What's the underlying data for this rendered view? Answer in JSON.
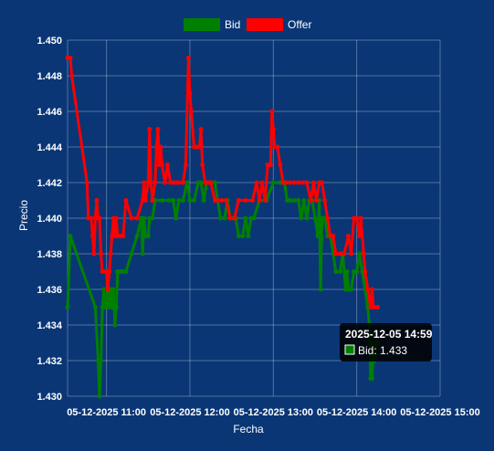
{
  "chart_data": {
    "type": "line",
    "xlabel": "Fecha",
    "ylabel": "Precio",
    "ylim": [
      1.43,
      1.45
    ],
    "yticks": [
      "1.430",
      "1.432",
      "1.434",
      "1.436",
      "1.438",
      "1.440",
      "1.442",
      "1.444",
      "1.446",
      "1.448",
      "1.450"
    ],
    "xlim": [
      "2025-12-05 10:32",
      "2025-12-05 15:00"
    ],
    "xticks": [
      {
        "t": "2025-12-05 11:00",
        "label": "05-12-2025 11:00"
      },
      {
        "t": "2025-12-05 12:00",
        "label": "05-12-2025 12:00"
      },
      {
        "t": "2025-12-05 13:00",
        "label": "05-12-2025 13:00"
      },
      {
        "t": "2025-12-05 14:00",
        "label": "05-12-2025 14:00"
      },
      {
        "t": "2025-12-05 15:00",
        "label": "05-12-2025 15:00"
      }
    ],
    "grid": true,
    "legend_position": "top",
    "series": [
      {
        "name": "Bid",
        "color": "#008000",
        "points": [
          [
            "2025-12-05 10:32",
            1.435
          ],
          [
            "2025-12-05 10:34",
            1.439
          ],
          [
            "2025-12-05 10:52",
            1.435
          ],
          [
            "2025-12-05 10:54",
            1.432
          ],
          [
            "2025-12-05 10:55",
            1.43
          ],
          [
            "2025-12-05 10:56",
            1.432
          ],
          [
            "2025-12-05 10:57",
            1.435
          ],
          [
            "2025-12-05 10:58",
            1.436
          ],
          [
            "2025-12-05 10:59",
            1.435
          ],
          [
            "2025-12-05 11:00",
            1.435
          ],
          [
            "2025-12-05 11:01",
            1.436
          ],
          [
            "2025-12-05 11:02",
            1.435
          ],
          [
            "2025-12-05 11:03",
            1.436
          ],
          [
            "2025-12-05 11:04",
            1.435
          ],
          [
            "2025-12-05 11:05",
            1.436
          ],
          [
            "2025-12-05 11:06",
            1.434
          ],
          [
            "2025-12-05 11:07",
            1.435
          ],
          [
            "2025-12-05 11:08",
            1.437
          ],
          [
            "2025-12-05 11:10",
            1.437
          ],
          [
            "2025-12-05 11:12",
            1.437
          ],
          [
            "2025-12-05 11:14",
            1.437
          ],
          [
            "2025-12-05 11:18",
            1.438
          ],
          [
            "2025-12-05 11:22",
            1.439
          ],
          [
            "2025-12-05 11:25",
            1.44
          ],
          [
            "2025-12-05 11:26",
            1.438
          ],
          [
            "2025-12-05 11:27",
            1.44
          ],
          [
            "2025-12-05 11:28",
            1.439
          ],
          [
            "2025-12-05 11:30",
            1.439
          ],
          [
            "2025-12-05 11:31",
            1.44
          ],
          [
            "2025-12-05 11:33",
            1.44
          ],
          [
            "2025-12-05 11:35",
            1.441
          ],
          [
            "2025-12-05 11:40",
            1.441
          ],
          [
            "2025-12-05 11:45",
            1.441
          ],
          [
            "2025-12-05 11:48",
            1.441
          ],
          [
            "2025-12-05 11:50",
            1.44
          ],
          [
            "2025-12-05 11:52",
            1.441
          ],
          [
            "2025-12-05 11:55",
            1.441
          ],
          [
            "2025-12-05 11:58",
            1.442
          ],
          [
            "2025-12-05 12:00",
            1.441
          ],
          [
            "2025-12-05 12:03",
            1.441
          ],
          [
            "2025-12-05 12:06",
            1.442
          ],
          [
            "2025-12-05 12:08",
            1.442
          ],
          [
            "2025-12-05 12:10",
            1.441
          ],
          [
            "2025-12-05 12:12",
            1.442
          ],
          [
            "2025-12-05 12:15",
            1.442
          ],
          [
            "2025-12-05 12:18",
            1.442
          ],
          [
            "2025-12-05 12:20",
            1.441
          ],
          [
            "2025-12-05 12:22",
            1.44
          ],
          [
            "2025-12-05 12:25",
            1.44
          ],
          [
            "2025-12-05 12:27",
            1.441
          ],
          [
            "2025-12-05 12:29",
            1.44
          ],
          [
            "2025-12-05 12:31",
            1.44
          ],
          [
            "2025-12-05 12:33",
            1.44
          ],
          [
            "2025-12-05 12:35",
            1.439
          ],
          [
            "2025-12-05 12:38",
            1.439
          ],
          [
            "2025-12-05 12:40",
            1.44
          ],
          [
            "2025-12-05 12:42",
            1.439
          ],
          [
            "2025-12-05 12:44",
            1.44
          ],
          [
            "2025-12-05 12:46",
            1.44
          ],
          [
            "2025-12-05 12:50",
            1.441
          ],
          [
            "2025-12-05 12:55",
            1.441
          ],
          [
            "2025-12-05 13:00",
            1.442
          ],
          [
            "2025-12-05 13:05",
            1.442
          ],
          [
            "2025-12-05 13:08",
            1.442
          ],
          [
            "2025-12-05 13:10",
            1.441
          ],
          [
            "2025-12-05 13:12",
            1.441
          ],
          [
            "2025-12-05 13:15",
            1.441
          ],
          [
            "2025-12-05 13:18",
            1.441
          ],
          [
            "2025-12-05 13:20",
            1.44
          ],
          [
            "2025-12-05 13:22",
            1.441
          ],
          [
            "2025-12-05 13:24",
            1.44
          ],
          [
            "2025-12-05 13:26",
            1.441
          ],
          [
            "2025-12-05 13:28",
            1.441
          ],
          [
            "2025-12-05 13:30",
            1.44
          ],
          [
            "2025-12-05 13:32",
            1.439
          ],
          [
            "2025-12-05 13:33",
            1.441
          ],
          [
            "2025-12-05 13:34",
            1.436
          ],
          [
            "2025-12-05 13:35",
            1.44
          ],
          [
            "2025-12-05 13:37",
            1.44
          ],
          [
            "2025-12-05 13:39",
            1.439
          ],
          [
            "2025-12-05 13:41",
            1.439
          ],
          [
            "2025-12-05 13:43",
            1.438
          ],
          [
            "2025-12-05 13:45",
            1.437
          ],
          [
            "2025-12-05 13:48",
            1.437
          ],
          [
            "2025-12-05 13:50",
            1.438
          ],
          [
            "2025-12-05 13:52",
            1.436
          ],
          [
            "2025-12-05 13:53",
            1.437
          ],
          [
            "2025-12-05 13:54",
            1.436
          ],
          [
            "2025-12-05 13:56",
            1.436
          ],
          [
            "2025-12-05 13:58",
            1.437
          ],
          [
            "2025-12-05 14:00",
            1.437
          ],
          [
            "2025-12-05 14:02",
            1.438
          ],
          [
            "2025-12-05 14:04",
            1.437
          ],
          [
            "2025-12-05 14:06",
            1.436
          ],
          [
            "2025-12-05 14:08",
            1.435
          ],
          [
            "2025-12-05 14:09",
            1.434
          ],
          [
            "2025-12-05 14:10",
            1.431
          ],
          [
            "2025-12-05 14:11",
            1.431
          ],
          [
            "2025-12-05 14:12",
            1.433
          ],
          [
            "2025-12-05 14:13",
            1.432
          ],
          [
            "2025-12-05 14:14",
            1.433
          ],
          [
            "2025-12-05 14:15",
            1.433
          ]
        ]
      },
      {
        "name": "Offer",
        "color": "#ff0000",
        "points": [
          [
            "2025-12-05 10:32",
            1.449
          ],
          [
            "2025-12-05 10:34",
            1.449
          ],
          [
            "2025-12-05 10:35",
            1.448
          ],
          [
            "2025-12-05 10:46",
            1.442
          ],
          [
            "2025-12-05 10:47",
            1.44
          ],
          [
            "2025-12-05 10:49",
            1.44
          ],
          [
            "2025-12-05 10:50",
            1.439
          ],
          [
            "2025-12-05 10:51",
            1.438
          ],
          [
            "2025-12-05 10:52",
            1.44
          ],
          [
            "2025-12-05 10:53",
            1.441
          ],
          [
            "2025-12-05 10:54",
            1.44
          ],
          [
            "2025-12-05 10:55",
            1.44
          ],
          [
            "2025-12-05 10:56",
            1.438
          ],
          [
            "2025-12-05 10:57",
            1.437
          ],
          [
            "2025-12-05 10:59",
            1.437
          ],
          [
            "2025-12-05 11:00",
            1.437
          ],
          [
            "2025-12-05 11:01",
            1.436
          ],
          [
            "2025-12-05 11:02",
            1.437
          ],
          [
            "2025-12-05 11:03",
            1.438
          ],
          [
            "2025-12-05 11:04",
            1.439
          ],
          [
            "2025-12-05 11:05",
            1.44
          ],
          [
            "2025-12-05 11:06",
            1.439
          ],
          [
            "2025-12-05 11:07",
            1.44
          ],
          [
            "2025-12-05 11:08",
            1.439
          ],
          [
            "2025-12-05 11:10",
            1.439
          ],
          [
            "2025-12-05 11:12",
            1.439
          ],
          [
            "2025-12-05 11:14",
            1.441
          ],
          [
            "2025-12-05 11:18",
            1.44
          ],
          [
            "2025-12-05 11:22",
            1.44
          ],
          [
            "2025-12-05 11:26",
            1.441
          ],
          [
            "2025-12-05 11:27",
            1.442
          ],
          [
            "2025-12-05 11:28",
            1.441
          ],
          [
            "2025-12-05 11:30",
            1.442
          ],
          [
            "2025-12-05 11:31",
            1.445
          ],
          [
            "2025-12-05 11:32",
            1.442
          ],
          [
            "2025-12-05 11:33",
            1.441
          ],
          [
            "2025-12-05 11:35",
            1.442
          ],
          [
            "2025-12-05 11:36",
            1.444
          ],
          [
            "2025-12-05 11:37",
            1.445
          ],
          [
            "2025-12-05 11:38",
            1.443
          ],
          [
            "2025-12-05 11:39",
            1.444
          ],
          [
            "2025-12-05 11:40",
            1.443
          ],
          [
            "2025-12-05 11:42",
            1.442
          ],
          [
            "2025-12-05 11:44",
            1.443
          ],
          [
            "2025-12-05 11:46",
            1.442
          ],
          [
            "2025-12-05 11:48",
            1.442
          ],
          [
            "2025-12-05 11:50",
            1.442
          ],
          [
            "2025-12-05 11:52",
            1.442
          ],
          [
            "2025-12-05 11:55",
            1.442
          ],
          [
            "2025-12-05 11:57",
            1.443
          ],
          [
            "2025-12-05 11:59",
            1.449
          ],
          [
            "2025-12-05 12:00",
            1.447
          ],
          [
            "2025-12-05 12:01",
            1.446
          ],
          [
            "2025-12-05 12:03",
            1.444
          ],
          [
            "2025-12-05 12:05",
            1.444
          ],
          [
            "2025-12-05 12:07",
            1.444
          ],
          [
            "2025-12-05 12:08",
            1.445
          ],
          [
            "2025-12-05 12:09",
            1.443
          ],
          [
            "2025-12-05 12:11",
            1.442
          ],
          [
            "2025-12-05 12:13",
            1.442
          ],
          [
            "2025-12-05 12:15",
            1.442
          ],
          [
            "2025-12-05 12:18",
            1.441
          ],
          [
            "2025-12-05 12:20",
            1.441
          ],
          [
            "2025-12-05 12:23",
            1.441
          ],
          [
            "2025-12-05 12:26",
            1.441
          ],
          [
            "2025-12-05 12:29",
            1.44
          ],
          [
            "2025-12-05 12:32",
            1.44
          ],
          [
            "2025-12-05 12:35",
            1.441
          ],
          [
            "2025-12-05 12:40",
            1.441
          ],
          [
            "2025-12-05 12:45",
            1.441
          ],
          [
            "2025-12-05 12:48",
            1.442
          ],
          [
            "2025-12-05 12:50",
            1.441
          ],
          [
            "2025-12-05 12:52",
            1.442
          ],
          [
            "2025-12-05 12:54",
            1.441
          ],
          [
            "2025-12-05 12:56",
            1.443
          ],
          [
            "2025-12-05 12:58",
            1.443
          ],
          [
            "2025-12-05 12:59",
            1.446
          ],
          [
            "2025-12-05 13:00",
            1.445
          ],
          [
            "2025-12-05 13:01",
            1.444
          ],
          [
            "2025-12-05 13:03",
            1.444
          ],
          [
            "2025-12-05 13:05",
            1.443
          ],
          [
            "2025-12-05 13:07",
            1.442
          ],
          [
            "2025-12-05 13:09",
            1.442
          ],
          [
            "2025-12-05 13:12",
            1.442
          ],
          [
            "2025-12-05 13:15",
            1.442
          ],
          [
            "2025-12-05 13:18",
            1.442
          ],
          [
            "2025-12-05 13:21",
            1.442
          ],
          [
            "2025-12-05 13:24",
            1.442
          ],
          [
            "2025-12-05 13:27",
            1.441
          ],
          [
            "2025-12-05 13:29",
            1.442
          ],
          [
            "2025-12-05 13:31",
            1.441
          ],
          [
            "2025-12-05 13:33",
            1.442
          ],
          [
            "2025-12-05 13:35",
            1.442
          ],
          [
            "2025-12-05 13:37",
            1.441
          ],
          [
            "2025-12-05 13:39",
            1.44
          ],
          [
            "2025-12-05 13:41",
            1.439
          ],
          [
            "2025-12-05 13:43",
            1.439
          ],
          [
            "2025-12-05 13:45",
            1.438
          ],
          [
            "2025-12-05 13:48",
            1.438
          ],
          [
            "2025-12-05 13:51",
            1.438
          ],
          [
            "2025-12-05 13:54",
            1.439
          ],
          [
            "2025-12-05 13:56",
            1.438
          ],
          [
            "2025-12-05 13:58",
            1.44
          ],
          [
            "2025-12-05 14:00",
            1.44
          ],
          [
            "2025-12-05 14:02",
            1.439
          ],
          [
            "2025-12-05 14:03",
            1.44
          ],
          [
            "2025-12-05 14:05",
            1.438
          ],
          [
            "2025-12-05 14:06",
            1.437
          ],
          [
            "2025-12-05 14:08",
            1.436
          ],
          [
            "2025-12-05 14:10",
            1.435
          ],
          [
            "2025-12-05 14:11",
            1.436
          ],
          [
            "2025-12-05 14:12",
            1.435
          ],
          [
            "2025-12-05 14:13",
            1.435
          ],
          [
            "2025-12-05 14:15",
            1.435
          ]
        ]
      }
    ],
    "tooltip": {
      "title": "2025-12-05 14:59",
      "series": "Bid",
      "text": "Bid: 1.433",
      "color": "#008000"
    }
  }
}
